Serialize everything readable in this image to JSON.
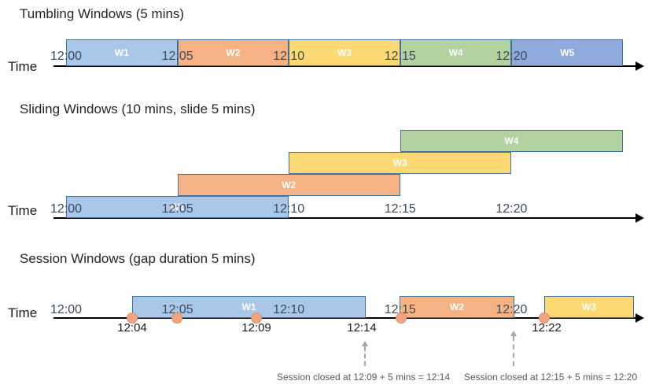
{
  "palette": {
    "blue": "#A9C7E8",
    "blue_dark": "#8FAADC",
    "orange": "#F5B285",
    "yellow": "#FCD972",
    "green": "#B2D2A0",
    "bar_border": "#41719C",
    "dot_fill": "#F2A47E",
    "dot_border": "#DE8F66",
    "axis_color": "#000000",
    "tick_text": "#3F4A58",
    "event_text": "#1a1a1a",
    "note_text": "#595959"
  },
  "diagram": {
    "tumbling": {
      "title": "Tumbling Windows (5 mins)",
      "time_label": "Time",
      "ticks": [
        "12:00",
        "12:05",
        "12:10",
        "12:15",
        "12:20"
      ],
      "windows": [
        {
          "label": "W1",
          "start": "12:00",
          "end": "12:05",
          "fill": "#A9C7E8"
        },
        {
          "label": "W2",
          "start": "12:05",
          "end": "12:10",
          "fill": "#F5B285"
        },
        {
          "label": "W3",
          "start": "12:10",
          "end": "12:15",
          "fill": "#FCD972"
        },
        {
          "label": "W4",
          "start": "12:15",
          "end": "12:20",
          "fill": "#B2D2A0"
        },
        {
          "label": "W5",
          "start": "12:20",
          "end": "12:25",
          "fill": "#8FAADC"
        }
      ]
    },
    "sliding": {
      "title": "Sliding Windows (10 mins, slide 5 mins)",
      "time_label": "Time",
      "ticks": [
        "12:00",
        "12:05",
        "12:10",
        "12:15",
        "12:20"
      ],
      "windows": [
        {
          "label": "W1",
          "start": "12:00",
          "end": "12:10",
          "row": 0,
          "fill": "#A9C7E8"
        },
        {
          "label": "W2",
          "start": "12:05",
          "end": "12:15",
          "row": 1,
          "fill": "#F5B285"
        },
        {
          "label": "W3",
          "start": "12:10",
          "end": "12:20",
          "row": 2,
          "fill": "#FCD972"
        },
        {
          "label": "W4",
          "start": "12:15",
          "end": "12:25",
          "row": 3,
          "fill": "#B2D2A0"
        }
      ]
    },
    "session": {
      "title": "Session Windows (gap duration 5 mins)",
      "time_label": "Time",
      "ticks": [
        "12:00",
        "12:05",
        "12:10",
        "12:15",
        "12:20"
      ],
      "windows": [
        {
          "label": "W1",
          "fill": "#A9C7E8"
        },
        {
          "label": "W2",
          "fill": "#F5B285"
        },
        {
          "label": "W3",
          "fill": "#FCD972"
        }
      ],
      "event_dots": [
        "12:04",
        "12:05",
        "12:09",
        "12:15",
        "12:22"
      ],
      "event_labels": [
        "12:04",
        "12:09",
        "12:14",
        "12:22"
      ],
      "annotations": [
        "Session closed at 12:09 + 5 mins = 12:14",
        "Session closed at 12:15 + 5 mins = 12:20"
      ]
    }
  }
}
